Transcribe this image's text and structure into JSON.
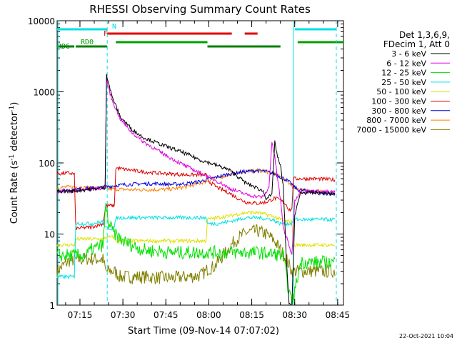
{
  "chart_data": {
    "type": "line",
    "title": "RHESSI Observing Summary Count Rates",
    "xlabel": "Start Time (09-Nov-14 07:07:02)",
    "ylabel_main": "Count Rate (s",
    "ylabel_sup1": "-1",
    "ylabel_mid": " detector",
    "ylabel_sup2": "-1",
    "ylabel_end": ")",
    "footer_date": "22-Oct-2021 10:04",
    "y_log": true,
    "ylim": [
      1,
      10000
    ],
    "xlim_minutes": [
      0,
      100
    ],
    "x_ticks": [
      {
        "m": 7.97,
        "label": "07:15"
      },
      {
        "m": 22.97,
        "label": "07:30"
      },
      {
        "m": 37.97,
        "label": "07:45"
      },
      {
        "m": 52.97,
        "label": "08:00"
      },
      {
        "m": 67.97,
        "label": "08:15"
      },
      {
        "m": 82.97,
        "label": "08:30"
      },
      {
        "m": 97.97,
        "label": "08:45"
      }
    ],
    "y_ticks": [
      {
        "v": 1,
        "label": "1"
      },
      {
        "v": 10,
        "label": "10"
      },
      {
        "v": 100,
        "label": "100"
      },
      {
        "v": 1000,
        "label": "1000"
      },
      {
        "v": 10000,
        "label": "10000"
      }
    ],
    "legend_header": [
      "Det 1,3,6,9,",
      "FDecim 1, Att 0"
    ],
    "legend_position": "right",
    "series": [
      {
        "name": "3 - 6 keV",
        "color": "#000000",
        "points": [
          [
            0,
            40
          ],
          [
            5,
            40
          ],
          [
            10,
            42
          ],
          [
            15,
            44
          ],
          [
            16.8,
            45
          ],
          [
            17.2,
            1800
          ],
          [
            19,
            900
          ],
          [
            22,
            450
          ],
          [
            26,
            300
          ],
          [
            30,
            230
          ],
          [
            35,
            190
          ],
          [
            40,
            160
          ],
          [
            45,
            135
          ],
          [
            50,
            110
          ],
          [
            55,
            95
          ],
          [
            60,
            80
          ],
          [
            63,
            65
          ],
          [
            66,
            52
          ],
          [
            69,
            46
          ],
          [
            72,
            40
          ],
          [
            73,
            32
          ],
          [
            75,
            35
          ],
          [
            76,
            200
          ],
          [
            77,
            120
          ],
          [
            78,
            90
          ],
          [
            79,
            45
          ],
          [
            80,
            5
          ],
          [
            81,
            1
          ],
          [
            82,
            1
          ],
          [
            83,
            18
          ],
          [
            85,
            38
          ],
          [
            90,
            38
          ],
          [
            95,
            37
          ],
          [
            97,
            36
          ]
        ]
      },
      {
        "name": "6 - 12 keV",
        "color": "#e000e0",
        "points": [
          [
            0,
            40
          ],
          [
            5,
            40
          ],
          [
            10,
            42
          ],
          [
            15,
            44
          ],
          [
            16.8,
            45
          ],
          [
            17.2,
            1500
          ],
          [
            19,
            800
          ],
          [
            22,
            420
          ],
          [
            26,
            270
          ],
          [
            30,
            200
          ],
          [
            35,
            150
          ],
          [
            40,
            115
          ],
          [
            45,
            90
          ],
          [
            50,
            72
          ],
          [
            55,
            58
          ],
          [
            58,
            50
          ],
          [
            60,
            44
          ],
          [
            63,
            40
          ],
          [
            66,
            36
          ],
          [
            69,
            34
          ],
          [
            72,
            33
          ],
          [
            74,
            45
          ],
          [
            75,
            200
          ],
          [
            76,
            120
          ],
          [
            77,
            60
          ],
          [
            78,
            30
          ],
          [
            79,
            12
          ],
          [
            81,
            7
          ],
          [
            82,
            5
          ],
          [
            83,
            30
          ],
          [
            85,
            40
          ],
          [
            90,
            40
          ],
          [
            95,
            39
          ],
          [
            97,
            39
          ]
        ]
      },
      {
        "name": "12 - 25 keV",
        "color": "#00e000",
        "points": [
          [
            0,
            5
          ],
          [
            10,
            5
          ],
          [
            12,
            6
          ],
          [
            16,
            7
          ],
          [
            17,
            25
          ],
          [
            18,
            14
          ],
          [
            20,
            10
          ],
          [
            23,
            8
          ],
          [
            26,
            7
          ],
          [
            30,
            6
          ],
          [
            40,
            5.5
          ],
          [
            50,
            5.5
          ],
          [
            60,
            5.5
          ],
          [
            70,
            5.5
          ],
          [
            76,
            5.2
          ],
          [
            79,
            5
          ],
          [
            80,
            2.5
          ],
          [
            82,
            1
          ],
          [
            85,
            4
          ],
          [
            90,
            4
          ],
          [
            97,
            4
          ]
        ]
      },
      {
        "name": "25 - 50 keV",
        "color": "#00e0e0",
        "points": [
          [
            0,
            2.5
          ],
          [
            6,
            2.5
          ],
          [
            6.5,
            14
          ],
          [
            12,
            14
          ],
          [
            16,
            15
          ],
          [
            17,
            12
          ],
          [
            20,
            12
          ],
          [
            20.5,
            17
          ],
          [
            30,
            17
          ],
          [
            45,
            17
          ],
          [
            52,
            17
          ],
          [
            52.5,
            14
          ],
          [
            56,
            14
          ],
          [
            60,
            15
          ],
          [
            66,
            17
          ],
          [
            70,
            17
          ],
          [
            75,
            16
          ],
          [
            78,
            14
          ],
          [
            80,
            14
          ],
          [
            82,
            14
          ],
          [
            82.5,
            16
          ],
          [
            90,
            16
          ],
          [
            97,
            16
          ]
        ]
      },
      {
        "name": "50 - 100 keV",
        "color": "#e0e000",
        "points": [
          [
            0,
            7
          ],
          [
            6,
            7
          ],
          [
            6.5,
            8.5
          ],
          [
            16,
            8.5
          ],
          [
            17,
            9
          ],
          [
            20,
            9
          ],
          [
            20.5,
            8
          ],
          [
            30,
            8
          ],
          [
            45,
            8
          ],
          [
            52,
            8
          ],
          [
            52.5,
            16
          ],
          [
            56,
            17
          ],
          [
            60,
            18
          ],
          [
            66,
            20
          ],
          [
            70,
            20
          ],
          [
            75,
            18
          ],
          [
            78,
            16
          ],
          [
            80,
            15
          ],
          [
            82,
            15
          ],
          [
            82.5,
            7
          ],
          [
            90,
            7
          ],
          [
            97,
            7
          ]
        ]
      },
      {
        "name": "100 - 300 keV",
        "color": "#e00000",
        "points": [
          [
            0,
            70
          ],
          [
            4,
            72
          ],
          [
            6,
            70
          ],
          [
            6.5,
            12
          ],
          [
            12,
            12.5
          ],
          [
            16,
            14
          ],
          [
            17,
            25
          ],
          [
            20,
            25
          ],
          [
            20.5,
            85
          ],
          [
            25,
            80
          ],
          [
            30,
            75
          ],
          [
            35,
            72
          ],
          [
            40,
            70
          ],
          [
            45,
            68
          ],
          [
            50,
            68
          ],
          [
            52,
            68
          ],
          [
            53,
            55
          ],
          [
            56,
            45
          ],
          [
            60,
            38
          ],
          [
            63,
            32
          ],
          [
            66,
            28
          ],
          [
            70,
            27
          ],
          [
            73,
            28
          ],
          [
            76,
            32
          ],
          [
            78,
            30
          ],
          [
            79,
            28
          ],
          [
            80,
            26
          ],
          [
            81,
            22
          ],
          [
            82,
            22
          ],
          [
            82.5,
            60
          ],
          [
            90,
            60
          ],
          [
            97,
            58
          ]
        ]
      },
      {
        "name": "300 - 800 keV",
        "color": "#0000e0",
        "points": [
          [
            0,
            40
          ],
          [
            5,
            42
          ],
          [
            10,
            44
          ],
          [
            15,
            45
          ],
          [
            17,
            46
          ],
          [
            20,
            48
          ],
          [
            25,
            50
          ],
          [
            30,
            51
          ],
          [
            35,
            51
          ],
          [
            40,
            50
          ],
          [
            45,
            51
          ],
          [
            50,
            55
          ],
          [
            55,
            62
          ],
          [
            60,
            70
          ],
          [
            65,
            75
          ],
          [
            70,
            78
          ],
          [
            73,
            76
          ],
          [
            76,
            70
          ],
          [
            80,
            58
          ],
          [
            82,
            50
          ],
          [
            84,
            42
          ],
          [
            88,
            40
          ],
          [
            92,
            38
          ],
          [
            97,
            37
          ]
        ]
      },
      {
        "name": "800 - 7000 keV",
        "color": "#ff8000",
        "points": [
          [
            0,
            45
          ],
          [
            5,
            46
          ],
          [
            10,
            45
          ],
          [
            15,
            44
          ],
          [
            17,
            43
          ],
          [
            20,
            43
          ],
          [
            25,
            42
          ],
          [
            30,
            42
          ],
          [
            35,
            42
          ],
          [
            40,
            43
          ],
          [
            45,
            46
          ],
          [
            50,
            52
          ],
          [
            55,
            60
          ],
          [
            60,
            68
          ],
          [
            65,
            75
          ],
          [
            70,
            78
          ],
          [
            73,
            76
          ],
          [
            76,
            70
          ],
          [
            80,
            58
          ],
          [
            82,
            46
          ],
          [
            84,
            42
          ],
          [
            88,
            40
          ],
          [
            92,
            39
          ],
          [
            97,
            38
          ]
        ]
      },
      {
        "name": "7000 - 15000 keV",
        "color": "#808000",
        "points": [
          [
            0,
            3
          ],
          [
            4,
            4.2
          ],
          [
            10,
            4.5
          ],
          [
            16,
            4.4
          ],
          [
            17,
            3
          ],
          [
            20,
            3
          ],
          [
            22,
            2.5
          ],
          [
            30,
            2.5
          ],
          [
            40,
            2.4
          ],
          [
            45,
            2.5
          ],
          [
            50,
            2.6
          ],
          [
            52,
            3
          ],
          [
            52.5,
            3.2
          ],
          [
            55,
            3.5
          ],
          [
            58,
            5
          ],
          [
            62,
            8
          ],
          [
            66,
            10.5
          ],
          [
            70,
            11
          ],
          [
            73,
            10
          ],
          [
            76,
            8
          ],
          [
            78,
            6
          ],
          [
            80,
            4.5
          ],
          [
            82,
            3
          ],
          [
            82.5,
            3
          ],
          [
            85,
            3
          ],
          [
            90,
            3
          ],
          [
            97,
            3
          ]
        ]
      }
    ],
    "status_bars": [
      {
        "label": "N",
        "color": "#00e0e0",
        "segments": [
          [
            0,
            17.5
          ],
          [
            83,
            97.5
          ]
        ]
      },
      {
        "label": "F",
        "color": "#e00000",
        "segments": [
          [
            17.5,
            61
          ],
          [
            65.5,
            70
          ]
        ]
      },
      {
        "label": "RD0",
        "color": "#00a000",
        "segments": [
          [
            20.5,
            52.5
          ],
          [
            84,
            100
          ]
        ]
      },
      {
        "label": "RD6",
        "color": "#008000",
        "segments": [
          [
            0,
            6
          ],
          [
            6.5,
            17.5
          ],
          [
            52.5,
            78
          ]
        ]
      }
    ],
    "vlines_solid": [
      0.3,
      82.5
    ],
    "vlines_dashed": [
      17.5,
      97.5
    ]
  }
}
